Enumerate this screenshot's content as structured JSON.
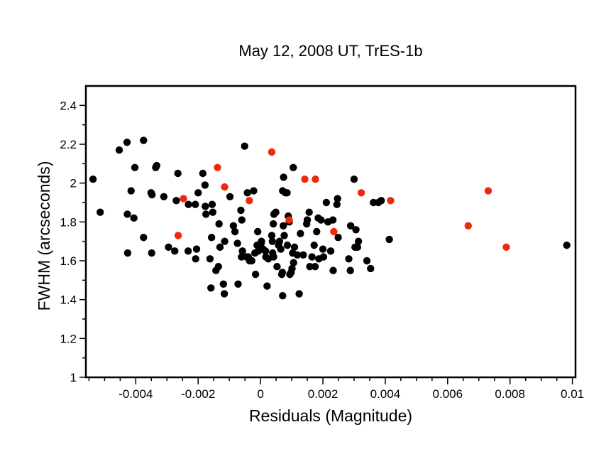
{
  "chart_data": {
    "type": "scatter",
    "title": "May 12, 2008 UT, TrES-1b",
    "xlabel": "Residuals (Magnitude)",
    "ylabel": "FWHM (arcseconds)",
    "xlim": [
      -0.0056,
      0.0101
    ],
    "ylim": [
      1.0,
      2.5
    ],
    "x_ticks": [
      {
        "value": -0.004,
        "label": "-0.004"
      },
      {
        "value": -0.002,
        "label": "-0.002"
      },
      {
        "value": 0,
        "label": "0"
      },
      {
        "value": 0.002,
        "label": "0.002"
      },
      {
        "value": 0.004,
        "label": "0.004"
      },
      {
        "value": 0.006,
        "label": "0.006"
      },
      {
        "value": 0.008,
        "label": "0.008"
      },
      {
        "value": 0.01,
        "label": "0.01"
      }
    ],
    "y_ticks": [
      {
        "value": 1.0,
        "label": "1"
      },
      {
        "value": 1.2,
        "label": "1.2"
      },
      {
        "value": 1.4,
        "label": "1.4"
      },
      {
        "value": 1.6,
        "label": "1.6"
      },
      {
        "value": 1.8,
        "label": "1.8"
      },
      {
        "value": 2.0,
        "label": "2"
      },
      {
        "value": 2.2,
        "label": "2.2"
      },
      {
        "value": 2.4,
        "label": "2.4"
      }
    ],
    "grid": false,
    "legend": "none",
    "series": [
      {
        "color": "#000000",
        "points": [
          [
            -0.00537,
            2.02
          ],
          [
            -0.00514,
            1.85
          ],
          [
            -0.00453,
            2.17
          ],
          [
            -0.00428,
            2.21
          ],
          [
            -0.00375,
            2.22
          ],
          [
            -0.00403,
            2.08
          ],
          [
            -0.00336,
            2.08
          ],
          [
            -0.00333,
            2.09
          ],
          [
            -0.00415,
            1.96
          ],
          [
            -0.00427,
            1.84
          ],
          [
            -0.00406,
            1.82
          ],
          [
            -0.00375,
            1.72
          ],
          [
            -0.00426,
            1.64
          ],
          [
            -0.00351,
            1.95
          ],
          [
            -0.00348,
            1.94
          ],
          [
            -0.00349,
            1.64
          ],
          [
            -0.0031,
            1.93
          ],
          [
            -0.0027,
            1.91
          ],
          [
            -0.00265,
            2.05
          ],
          [
            -0.00231,
            1.89
          ],
          [
            -0.00209,
            1.89
          ],
          [
            -0.002,
            1.95
          ],
          [
            -0.00185,
            2.05
          ],
          [
            -0.00178,
            1.99
          ],
          [
            -0.00177,
            1.88
          ],
          [
            -0.00175,
            1.84
          ],
          [
            -0.00155,
            1.89
          ],
          [
            -0.00153,
            1.85
          ],
          [
            -0.00157,
            1.72
          ],
          [
            -0.00133,
            1.79
          ],
          [
            -0.0013,
            1.67
          ],
          [
            -0.00115,
            1.7
          ],
          [
            -0.00098,
            1.93
          ],
          [
            -0.00087,
            1.78
          ],
          [
            -0.00082,
            1.75
          ],
          [
            -0.00074,
            1.69
          ],
          [
            -0.00063,
            1.86
          ],
          [
            -0.0006,
            1.81
          ],
          [
            -0.00061,
            1.62
          ],
          [
            -0.00042,
            1.95
          ],
          [
            -0.00039,
            1.62
          ],
          [
            -0.00035,
            1.6
          ],
          [
            -0.00022,
            1.96
          ],
          [
            -0.00018,
            1.64
          ],
          [
            -9e-05,
            1.75
          ],
          [
            -0.00011,
            1.68
          ],
          [
            -0.00016,
            1.53
          ],
          [
            2e-05,
            1.69
          ],
          [
            3e-05,
            1.7
          ],
          [
            0.00016,
            1.65
          ],
          [
            0.00017,
            1.62
          ],
          [
            0.00025,
            1.61
          ],
          [
            0.00036,
            1.73
          ],
          [
            0.00038,
            1.7
          ],
          [
            0.00039,
            1.64
          ],
          [
            0.00042,
            1.62
          ],
          [
            0.00041,
            1.79
          ],
          [
            0.00043,
            1.84
          ],
          [
            0.00049,
            1.85
          ],
          [
            0.00053,
            1.57
          ],
          [
            0.00058,
            1.68
          ],
          [
            0.00061,
            1.7
          ],
          [
            0.00065,
            1.66
          ],
          [
            0.00068,
            1.53
          ],
          [
            0.0007,
            1.54
          ],
          [
            0.00073,
            1.78
          ],
          [
            0.00076,
            1.73
          ],
          [
            0.00071,
            1.96
          ],
          [
            0.00074,
            2.03
          ],
          [
            0.0008,
            1.95
          ],
          [
            0.00085,
            1.95
          ],
          [
            0.00086,
            1.68
          ],
          [
            0.00089,
            1.83
          ],
          [
            0.00092,
            1.8
          ],
          [
            0.00094,
            1.53
          ],
          [
            0.00101,
            1.56
          ],
          [
            0.00103,
            1.64
          ],
          [
            0.00109,
            1.67
          ],
          [
            0.00105,
            2.08
          ],
          [
            0.00118,
            1.63
          ],
          [
            0.00128,
            1.74
          ],
          [
            0.00137,
            1.63
          ],
          [
            0.00148,
            1.79
          ],
          [
            0.0015,
            1.81
          ],
          [
            0.00156,
            1.85
          ],
          [
            0.00158,
            1.57
          ],
          [
            0.00165,
            1.62
          ],
          [
            0.00175,
            1.57
          ],
          [
            0.00172,
            1.68
          ],
          [
            0.0018,
            1.75
          ],
          [
            0.00185,
            1.82
          ],
          [
            0.00187,
            1.61
          ],
          [
            0.00194,
            1.81
          ],
          [
            0.002,
            1.66
          ],
          [
            0.00202,
            1.62
          ],
          [
            0.00211,
            1.9
          ],
          [
            0.00216,
            1.8
          ],
          [
            0.00225,
            1.65
          ],
          [
            0.00232,
            1.81
          ],
          [
            0.00233,
            1.55
          ],
          [
            0.00245,
            1.89
          ],
          [
            0.00247,
            1.92
          ],
          [
            0.00249,
            1.72
          ],
          [
            0.00283,
            1.61
          ],
          [
            0.00288,
            1.55
          ],
          [
            0.00289,
            1.78
          ],
          [
            0.003,
            2.02
          ],
          [
            0.00303,
            1.67
          ],
          [
            0.00306,
            1.76
          ],
          [
            0.00311,
            1.67
          ],
          [
            0.00314,
            1.7
          ],
          [
            0.00341,
            1.6
          ],
          [
            0.00353,
            1.56
          ],
          [
            0.00362,
            1.9
          ],
          [
            0.00378,
            1.9
          ],
          [
            0.00387,
            1.91
          ],
          [
            0.00413,
            1.71
          ],
          [
            -0.00295,
            1.67
          ],
          [
            -0.00275,
            1.65
          ],
          [
            -0.00232,
            1.65
          ],
          [
            -0.00208,
            1.61
          ],
          [
            -0.00205,
            1.66
          ],
          [
            -0.00162,
            1.61
          ],
          [
            -0.00143,
            1.55
          ],
          [
            -0.00135,
            1.57
          ],
          [
            -0.00119,
            1.48
          ],
          [
            -0.00116,
            1.43
          ],
          [
            -0.00159,
            1.46
          ],
          [
            -0.00072,
            1.48
          ],
          [
            -0.00058,
            1.65
          ],
          [
            -0.00028,
            1.6
          ],
          [
            0.00021,
            1.47
          ],
          [
            -7e-05,
            1.65
          ],
          [
            0.00106,
            1.59
          ],
          [
            0.00098,
            1.54
          ],
          [
            0.00071,
            1.42
          ],
          [
            0.00124,
            1.43
          ],
          [
            -0.00045,
            1.62
          ],
          [
            8e-05,
            1.66
          ],
          [
            -0.00051,
            2.19
          ],
          [
            0.00982,
            1.68
          ]
        ]
      },
      {
        "color": "#ee2a0b",
        "points": [
          [
            -0.00247,
            1.92
          ],
          [
            -0.00264,
            1.73
          ],
          [
            -0.00138,
            2.08
          ],
          [
            -0.00115,
            1.98
          ],
          [
            -0.00036,
            1.91
          ],
          [
            0.00036,
            2.16
          ],
          [
            0.00092,
            1.81
          ],
          [
            0.00142,
            2.02
          ],
          [
            0.00176,
            2.02
          ],
          [
            0.00235,
            1.75
          ],
          [
            0.00323,
            1.95
          ],
          [
            0.00417,
            1.91
          ],
          [
            0.00666,
            1.78
          ],
          [
            0.0073,
            1.96
          ],
          [
            0.00788,
            1.67
          ]
        ]
      }
    ]
  }
}
